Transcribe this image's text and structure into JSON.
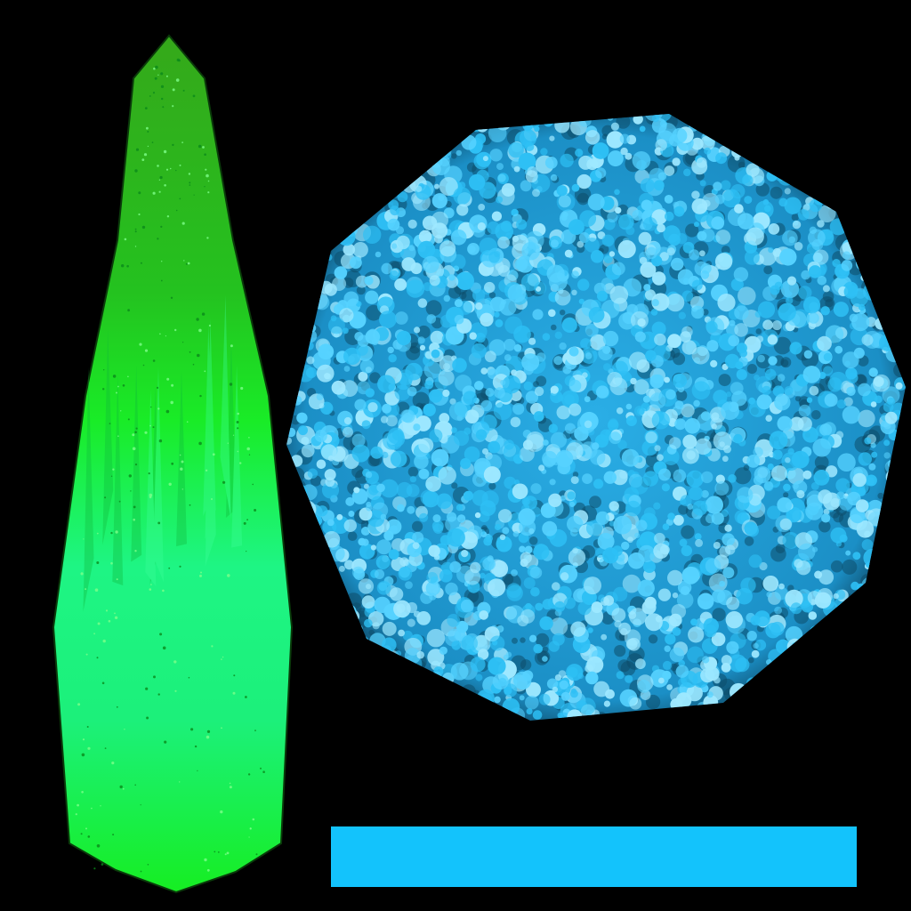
{
  "background_color": "#000000",
  "elements": [
    {
      "name": "green-crystal-texture",
      "kind": "crystal",
      "colors": [
        "#35a81a",
        "#19ec27",
        "#1ef584",
        "#16ee22"
      ]
    },
    {
      "name": "blue-bubble-decagon-texture",
      "kind": "bubble-disc",
      "colors": [
        "#1e9cd8",
        "#2ec0f5",
        "#56d2ff",
        "#9ee8ff"
      ]
    },
    {
      "name": "blue-color-strip",
      "kind": "solid-bar",
      "color": "#13c3fc"
    }
  ]
}
